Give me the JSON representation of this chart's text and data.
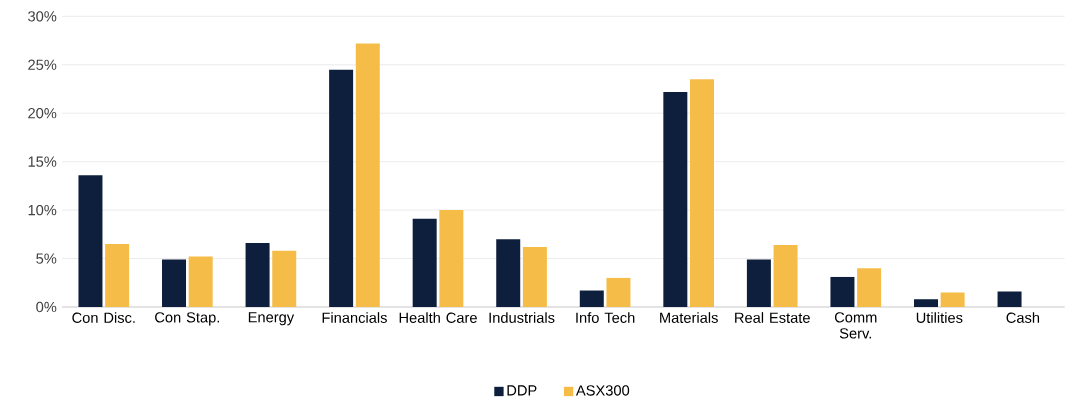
{
  "chart_data": {
    "type": "bar",
    "categories": [
      "Con Disc.",
      "Con Stap.",
      "Energy",
      "Financials",
      "Health Care",
      "Industrials",
      "Info Tech",
      "Materials",
      "Real Estate",
      "Comm Serv.",
      "Utilities",
      "Cash"
    ],
    "series": [
      {
        "name": "DDP",
        "color": "#0d1f3c",
        "values": [
          13.6,
          4.9,
          6.6,
          24.5,
          9.1,
          7.0,
          1.7,
          22.2,
          4.9,
          3.1,
          0.8,
          1.6
        ]
      },
      {
        "name": "ASX300",
        "color": "#f5bd47",
        "values": [
          6.5,
          5.2,
          5.8,
          27.2,
          10.0,
          6.2,
          3.0,
          23.5,
          6.4,
          4.0,
          1.5,
          null
        ]
      }
    ],
    "ylim": [
      0,
      30
    ],
    "yticks": [
      {
        "value": 0,
        "label": "0%"
      },
      {
        "value": 5,
        "label": "5%"
      },
      {
        "value": 10,
        "label": "10%"
      },
      {
        "value": 15,
        "label": "15%"
      },
      {
        "value": 20,
        "label": "20%"
      },
      {
        "value": 25,
        "label": "25%"
      },
      {
        "value": 30,
        "label": "30%"
      }
    ],
    "grid": "y",
    "legend": "bottom"
  }
}
